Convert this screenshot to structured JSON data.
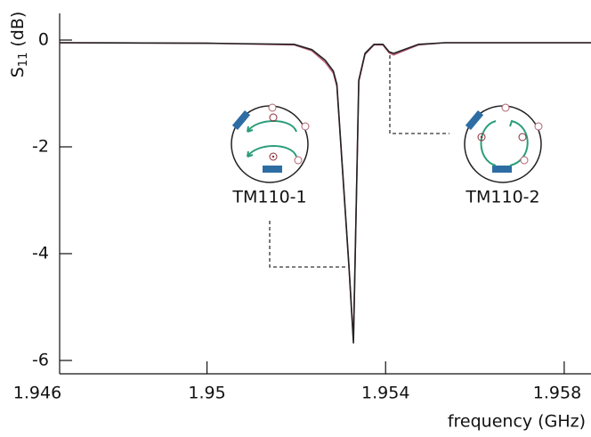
{
  "chart_data": {
    "type": "line",
    "x_label": "frequency (GHz)",
    "y_label": {
      "symbol": "S",
      "subscript": "11",
      "unit": "(dB)"
    },
    "xlim": [
      1.9467,
      1.9586
    ],
    "ylim": [
      -6.25,
      0.5
    ],
    "xticks": [
      1.946,
      1.95,
      1.954,
      1.958
    ],
    "yticks": [
      0,
      -2,
      -4,
      -6
    ],
    "series": [
      {
        "color": "#c0607a",
        "x": [
          1.9467,
          1.95,
          1.95195,
          1.95235,
          1.95265,
          1.95283,
          1.95291,
          1.95318,
          1.95328,
          1.9534,
          1.95354,
          1.95374,
          1.95394,
          1.95408,
          1.95418,
          1.95444,
          1.95474,
          1.95533,
          1.9586
        ],
        "values": [
          -0.05,
          -0.06,
          -0.09,
          -0.2,
          -0.42,
          -0.62,
          -0.87,
          -4.25,
          -5.62,
          -0.78,
          -0.27,
          -0.09,
          -0.09,
          -0.24,
          -0.28,
          -0.19,
          -0.09,
          -0.05,
          -0.05
        ]
      },
      {
        "color": "#222222",
        "x": [
          1.9467,
          1.95,
          1.95195,
          1.95235,
          1.95265,
          1.95283,
          1.95291,
          1.95318,
          1.95328,
          1.9534,
          1.95354,
          1.95374,
          1.95394,
          1.95408,
          1.95418,
          1.95444,
          1.95474,
          1.95533,
          1.9586
        ],
        "values": [
          -0.05,
          -0.06,
          -0.08,
          -0.18,
          -0.38,
          -0.58,
          -0.83,
          -4.25,
          -5.67,
          -0.75,
          -0.25,
          -0.08,
          -0.08,
          -0.22,
          -0.25,
          -0.17,
          -0.08,
          -0.05,
          -0.05
        ]
      }
    ],
    "annotations": [
      "TM110-1",
      "TM110-2"
    ]
  }
}
